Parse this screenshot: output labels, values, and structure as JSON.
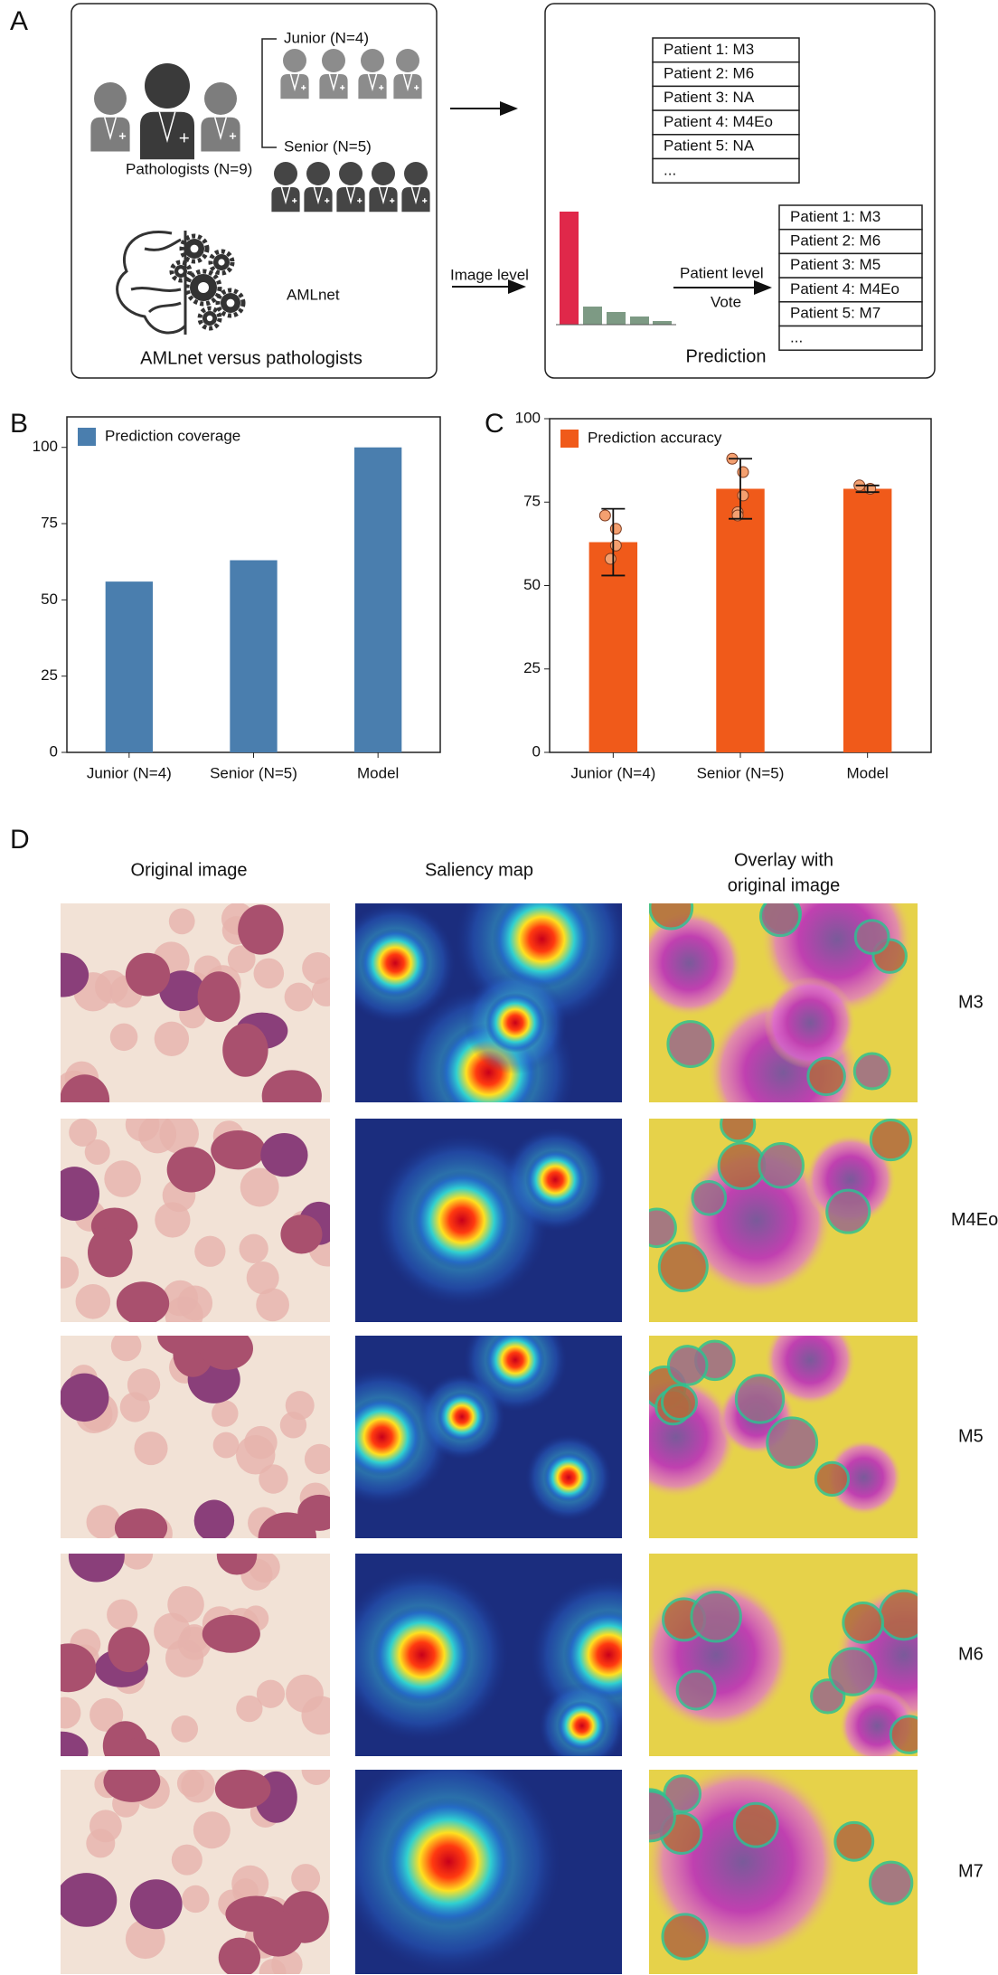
{
  "panel_a": {
    "label": "A",
    "junior": "Junior (N=4)",
    "senior": "Senior (N=5)",
    "pathologists": "Pathologists (N=9)",
    "amlnet": "AMLnet",
    "caption": "AMLnet versus pathologists",
    "image_level": "Image level",
    "patient_level": "Patient level",
    "vote": "Vote",
    "prediction": "Prediction",
    "pathologist_table": [
      "Patient 1: M3",
      "Patient 2: M6",
      "Patient 3: NA",
      "Patient 4: M4Eo",
      "Patient 5: NA",
      "..."
    ],
    "model_table": [
      "Patient 1: M3",
      "Patient 2: M6",
      "Patient 3: M5",
      "Patient 4: M4Eo",
      "Patient 5: M7",
      "..."
    ]
  },
  "chart_data": [
    {
      "type": "bar",
      "panel": "B",
      "categories": [
        "Junior (N=4)",
        "Senior (N=5)",
        "Model"
      ],
      "ylim": [
        0,
        110
      ],
      "yticks": [
        0,
        25,
        50,
        75,
        100
      ],
      "series": [
        {
          "name": "Prediction coverage",
          "color": "#4a7eae",
          "values": [
            56,
            63,
            100
          ]
        }
      ]
    },
    {
      "type": "bar",
      "panel": "C",
      "categories": [
        "Junior (N=4)",
        "Senior (N=5)",
        "Model"
      ],
      "ylim": [
        0,
        100
      ],
      "yticks": [
        0,
        25,
        50,
        75,
        100
      ],
      "series": [
        {
          "name": "Prediction accuracy",
          "color": "#f05a1a",
          "values": [
            63,
            79,
            79
          ],
          "errors": [
            10,
            9,
            1
          ],
          "points": [
            [
              71,
              67,
              62,
              58
            ],
            [
              88,
              84,
              77,
              72,
              71
            ],
            [
              80,
              79
            ]
          ],
          "point_color": "#f4a070"
        }
      ]
    }
  ],
  "panel_d": {
    "label": "D",
    "columns": [
      "Original image",
      "Saliency map"
    ],
    "overlay_title": [
      "Overlay with",
      "original image"
    ],
    "rows": [
      "M3",
      "M4Eo",
      "M5",
      "M6",
      "M7"
    ]
  }
}
